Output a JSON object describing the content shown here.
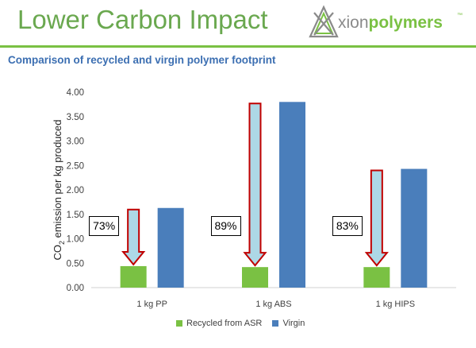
{
  "header": {
    "title": "Lower Carbon Impact",
    "subtitle": "Comparison of recycled and virgin polymer footprint"
  },
  "logo": {
    "text_part1": "xion",
    "text_part2": "polymers",
    "trademark": "™",
    "icon": "axion-triangle-logo-icon",
    "color_gray": "#8a8a8a",
    "color_green": "#7ac143"
  },
  "chart_data": {
    "type": "bar",
    "categories": [
      "1 kg PP",
      "1 kg ABS",
      "1  kg HIPS"
    ],
    "series": [
      {
        "name": "Recycled from ASR",
        "values": [
          0.44,
          0.42,
          0.42
        ],
        "color": "#7ac143"
      },
      {
        "name": "Virgin",
        "values": [
          1.63,
          3.8,
          2.43
        ],
        "color": "#4a7ebb"
      }
    ],
    "ylabel": "CO2 emission per kg produced",
    "ylim": [
      0,
      4.0
    ],
    "yticks": [
      "0.00",
      "0.50",
      "1.00",
      "1.50",
      "2.00",
      "2.50",
      "3.00",
      "3.50",
      "4.00"
    ],
    "grid": false,
    "legend": "bottom",
    "annotations": [
      "73%",
      "89%",
      "83%"
    ],
    "arrow_color": "#c00000",
    "arrow_fill": "#add8e6"
  }
}
